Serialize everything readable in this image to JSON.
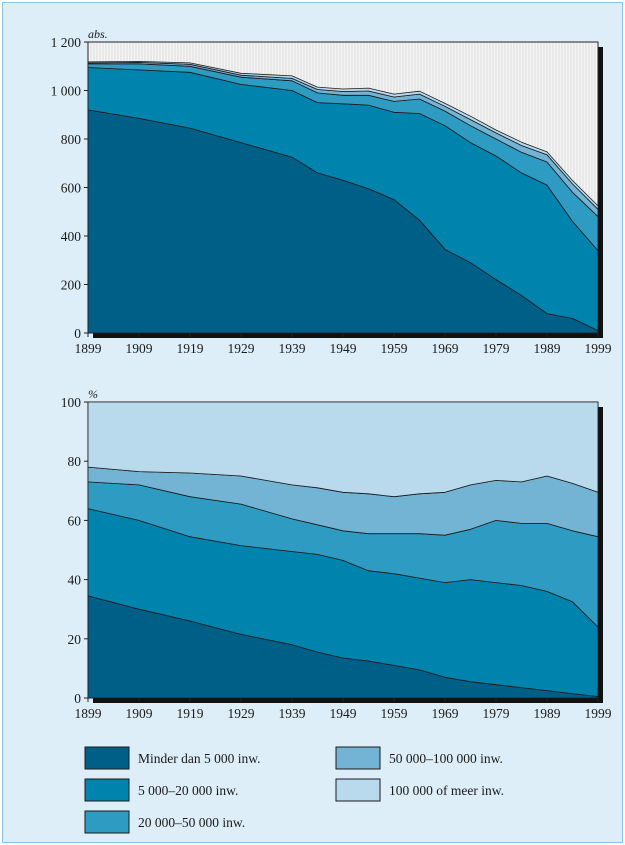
{
  "colors": {
    "background": "#ddeef8",
    "frame": "#8fc3e4",
    "plot_bg": "#ffffff",
    "series": [
      "#005f87",
      "#0083ad",
      "#2e9cc2",
      "#73b3d3",
      "#b9d9ec"
    ],
    "top_pct_bg": "#d7e8f3"
  },
  "chart_data": [
    {
      "type": "area",
      "stacked": true,
      "unit_label": "abs.",
      "xlim": [
        1899,
        1999
      ],
      "ylim": [
        0,
        1200
      ],
      "y_ticks": [
        0,
        200,
        400,
        600,
        800,
        1000,
        1200
      ],
      "y_tick_labels": [
        "0",
        "200",
        "400",
        "600",
        "800",
        "1 000",
        "1 200"
      ],
      "x_ticks": [
        1899,
        1909,
        1919,
        1929,
        1939,
        1949,
        1959,
        1969,
        1979,
        1989,
        1999
      ],
      "x_tick_labels": [
        "1899",
        "1909",
        "1919",
        "1929",
        "1939",
        "1949",
        "1959",
        "1969",
        "1979",
        "1989",
        "1999"
      ],
      "x": [
        1899,
        1909,
        1919,
        1929,
        1939,
        1944,
        1949,
        1954,
        1959,
        1964,
        1969,
        1974,
        1979,
        1984,
        1989,
        1994,
        1999
      ],
      "series": [
        {
          "values": [
            920,
            885,
            845,
            785,
            725,
            660,
            630,
            595,
            550,
            465,
            345,
            290,
            220,
            155,
            80,
            60,
            10
          ]
        },
        {
          "values": [
            175,
            200,
            230,
            240,
            275,
            290,
            315,
            345,
            360,
            440,
            510,
            495,
            510,
            505,
            530,
            400,
            330
          ]
        },
        {
          "values": [
            15,
            25,
            25,
            30,
            40,
            40,
            35,
            40,
            45,
            60,
            60,
            70,
            70,
            85,
            95,
            120,
            140
          ]
        },
        {
          "values": [
            4,
            6,
            8,
            8,
            10,
            14,
            16,
            18,
            18,
            20,
            20,
            25,
            25,
            28,
            30,
            35,
            30
          ]
        },
        {
          "values": [
            4,
            4,
            6,
            8,
            10,
            10,
            10,
            12,
            12,
            12,
            12,
            14,
            12,
            14,
            12,
            14,
            14
          ]
        }
      ]
    },
    {
      "type": "area",
      "stacked": true,
      "unit_label": "%",
      "xlim": [
        1899,
        1999
      ],
      "ylim": [
        0,
        100
      ],
      "y_ticks": [
        0,
        20,
        40,
        60,
        80,
        100
      ],
      "y_tick_labels": [
        "0",
        "20",
        "40",
        "60",
        "80",
        "100"
      ],
      "x_ticks": [
        1899,
        1909,
        1919,
        1929,
        1939,
        1949,
        1959,
        1969,
        1979,
        1989,
        1999
      ],
      "x_tick_labels": [
        "1899",
        "1909",
        "1919",
        "1929",
        "1939",
        "1949",
        "1959",
        "1969",
        "1979",
        "1989",
        "1999"
      ],
      "x": [
        1899,
        1909,
        1919,
        1929,
        1939,
        1944,
        1949,
        1954,
        1959,
        1964,
        1969,
        1974,
        1979,
        1984,
        1989,
        1994,
        1999
      ],
      "series": [
        {
          "values": [
            34.5,
            30,
            26,
            21.5,
            18,
            15.5,
            13.5,
            12.5,
            11,
            9.5,
            7,
            5.5,
            4.5,
            3.5,
            2.5,
            1.5,
            0.5
          ]
        },
        {
          "values": [
            29.5,
            30,
            28.5,
            30,
            31.5,
            33,
            33,
            30.5,
            31,
            31,
            32,
            34.5,
            34.5,
            34.5,
            33.5,
            31,
            23.5
          ]
        },
        {
          "values": [
            9,
            12,
            13.5,
            14,
            11,
            10,
            10,
            12.5,
            13.5,
            15,
            16,
            17,
            21,
            21,
            23,
            24,
            30.5
          ]
        },
        {
          "values": [
            5,
            4.5,
            8,
            9.5,
            11.5,
            12.5,
            13,
            13.5,
            12.5,
            13.5,
            14.5,
            15,
            13.5,
            14,
            16,
            16,
            15
          ]
        },
        {
          "values": [
            22,
            23.5,
            24,
            25,
            28,
            29,
            30.5,
            31,
            32,
            31,
            30.5,
            28,
            26.5,
            27,
            25,
            27.5,
            30.5
          ]
        }
      ]
    }
  ],
  "legend": [
    {
      "label": "Minder dan 5 000 inw.",
      "color": "#005f87"
    },
    {
      "label": "5 000–20 000 inw.",
      "color": "#0083ad"
    },
    {
      "label": "20 000–50 000 inw.",
      "color": "#2e9cc2"
    },
    {
      "label": "50 000–100 000 inw.",
      "color": "#73b3d3"
    },
    {
      "label": "100 000 of meer inw.",
      "color": "#b9d9ec"
    }
  ]
}
